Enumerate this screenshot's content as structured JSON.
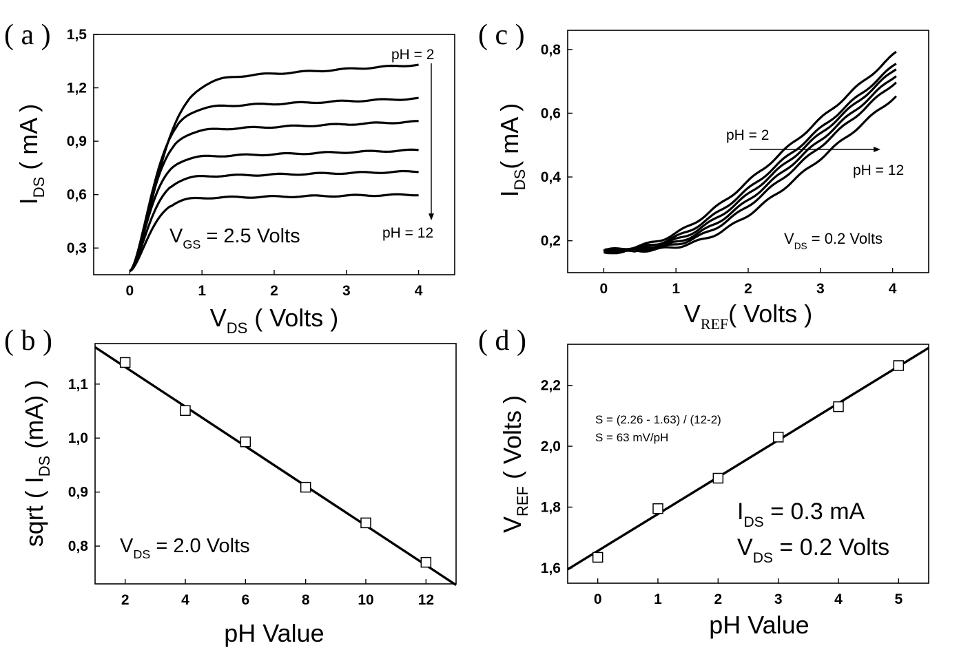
{
  "chart_data": [
    {
      "id": "a",
      "type": "line",
      "panel_label": "( a )",
      "xlabel": {
        "main": "V",
        "sub": "DS",
        "rest": " ( Volts )"
      },
      "ylabel": {
        "main": "I",
        "sub": "DS",
        "rest": " ( mA )"
      },
      "xlim": [
        -0.5,
        4.5
      ],
      "ylim": [
        0.15,
        1.5
      ],
      "xticks": [
        0,
        1,
        2,
        3,
        4
      ],
      "yticks": [
        0.3,
        0.6,
        0.9,
        1.2,
        1.5
      ],
      "xtick_labels": [
        "0",
        "1",
        "2",
        "3",
        "4"
      ],
      "ytick_labels": [
        "0,3",
        "0,6",
        "0,9",
        "1,2",
        "1,5"
      ],
      "series": [
        {
          "name": "pH = 2",
          "knee": 0.8,
          "start": 0.17,
          "plateau": 1.25,
          "end": 1.33
        },
        {
          "name": "",
          "knee": 0.65,
          "start": 0.17,
          "plateau": 1.09,
          "end": 1.14
        },
        {
          "name": "",
          "knee": 0.6,
          "start": 0.17,
          "plateau": 0.96,
          "end": 1.01
        },
        {
          "name": "",
          "knee": 0.55,
          "start": 0.17,
          "plateau": 0.81,
          "end": 0.85
        },
        {
          "name": "",
          "knee": 0.55,
          "start": 0.17,
          "plateau": 0.7,
          "end": 0.73
        },
        {
          "name": "pH = 12",
          "knee": 0.55,
          "start": 0.17,
          "plateau": 0.58,
          "end": 0.6
        }
      ],
      "annotations": {
        "ph_top": "pH = 2",
        "ph_bottom": "pH = 12",
        "condition": {
          "main": "V",
          "sub": "GS",
          "rest": " = 2.5 Volts"
        }
      }
    },
    {
      "id": "b",
      "type": "scatter",
      "panel_label": "( b )",
      "xlabel": {
        "main": "pH Value"
      },
      "ylabel": {
        "pre": "sqrt ( I",
        "sub": "DS",
        "rest": " (mA) )"
      },
      "xlim": [
        1,
        13
      ],
      "ylim": [
        0.73,
        1.175
      ],
      "xticks": [
        2,
        4,
        6,
        8,
        10,
        12
      ],
      "yticks": [
        0.8,
        0.9,
        1.0,
        1.1
      ],
      "xtick_labels": [
        "2",
        "4",
        "6",
        "8",
        "10",
        "12"
      ],
      "ytick_labels": [
        "0,8",
        "0,9",
        "1,0",
        "1,1"
      ],
      "x": [
        2,
        4,
        6,
        8,
        10,
        12
      ],
      "y": [
        1.14,
        1.051,
        0.993,
        0.909,
        0.843,
        0.77
      ],
      "fit": {
        "slope": -0.0367,
        "intercept": 1.205
      },
      "annotations": {
        "condition": {
          "main": "V",
          "sub": "DS",
          "rest": " = 2.0 Volts"
        }
      }
    },
    {
      "id": "c",
      "type": "line",
      "panel_label": "( c )",
      "xlabel": {
        "main": "V",
        "sub": "REF",
        "rest": "( Volts )"
      },
      "ylabel": {
        "main": "I",
        "sub": "DS",
        "rest": "( mA )"
      },
      "xlim": [
        -0.5,
        4.5
      ],
      "ylim": [
        0.1,
        0.86
      ],
      "xticks": [
        0,
        1,
        2,
        3,
        4
      ],
      "yticks": [
        0.2,
        0.4,
        0.6,
        0.8
      ],
      "xtick_labels": [
        "0",
        "1",
        "2",
        "3",
        "4"
      ],
      "ytick_labels": [
        "0,2",
        "0,4",
        "0,6",
        "0,8"
      ],
      "series": [
        {
          "name": "pH = 2",
          "onset": 0.9,
          "floor": 0.165,
          "end": 0.79
        },
        {
          "name": "",
          "onset": 1.0,
          "floor": 0.165,
          "end": 0.755
        },
        {
          "name": "",
          "onset": 1.1,
          "floor": 0.165,
          "end": 0.74
        },
        {
          "name": "",
          "onset": 1.2,
          "floor": 0.165,
          "end": 0.72
        },
        {
          "name": "",
          "onset": 1.3,
          "floor": 0.165,
          "end": 0.7
        },
        {
          "name": "pH = 12",
          "onset": 1.45,
          "floor": 0.165,
          "end": 0.655
        }
      ],
      "annotations": {
        "ph_left": "pH = 2",
        "ph_right": "pH = 12",
        "condition": {
          "main": "V",
          "sub": "DS",
          "rest": " = 0.2 Volts"
        }
      }
    },
    {
      "id": "d",
      "type": "scatter",
      "panel_label": "( d )",
      "xlabel": {
        "main": "pH Value"
      },
      "ylabel": {
        "main": "V",
        "sub": "REF",
        "rest": " ( Volts )"
      },
      "xlim": [
        -0.5,
        5.5
      ],
      "ylim": [
        1.55,
        2.335
      ],
      "xticks": [
        0,
        1,
        2,
        3,
        4,
        5
      ],
      "yticks": [
        1.6,
        1.8,
        2.0,
        2.2
      ],
      "xtick_labels": [
        "0",
        "1",
        "2",
        "3",
        "4",
        "5"
      ],
      "ytick_labels": [
        "1,6",
        "1,8",
        "2,0",
        "2,2"
      ],
      "x": [
        0,
        1,
        2,
        3,
        4,
        5
      ],
      "y": [
        1.635,
        1.795,
        1.895,
        2.03,
        2.13,
        2.265
      ],
      "fit": {
        "slope": 0.1213,
        "intercept": 1.656
      },
      "annotations": {
        "formula1": "S = (2.26 - 1.63) / (12-2)",
        "formula2": "S =  63 mV/pH",
        "ids": {
          "main": "I",
          "sub": "DS",
          "rest": "   = 0.3 mA"
        },
        "vds": {
          "main": "V",
          "sub": "DS",
          "rest": "   = 0.2 Volts"
        }
      }
    }
  ]
}
